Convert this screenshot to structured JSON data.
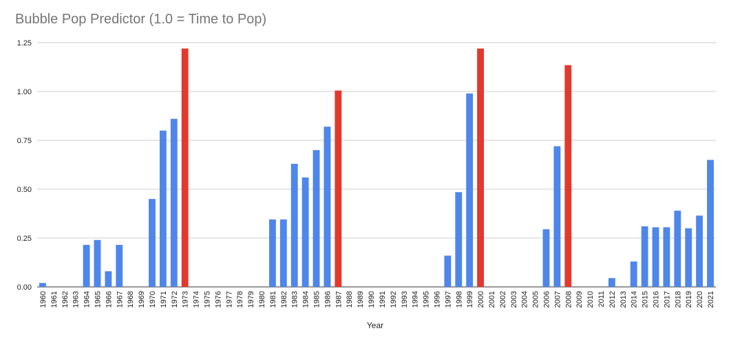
{
  "chart_data": {
    "type": "bar",
    "title": "Bubble Pop Predictor (1.0 = Time to Pop)",
    "xlabel": "Year",
    "ylabel": "",
    "ylim": [
      0,
      1.25
    ],
    "yticks": [
      "0.00",
      "0.25",
      "0.50",
      "0.75",
      "1.00",
      "1.25"
    ],
    "grid": true,
    "legend": "none",
    "colors": {
      "default": "#4e86ea",
      "highlight": "#e3392c"
    },
    "highlight_categories": [
      "1973",
      "1987",
      "2000",
      "2008"
    ],
    "categories": [
      "1960",
      "1961",
      "1962",
      "1963",
      "1964",
      "1965",
      "1966",
      "1967",
      "1968",
      "1969",
      "1970",
      "1971",
      "1972",
      "1973",
      "1974",
      "1975",
      "1976",
      "1977",
      "1978",
      "1979",
      "1980",
      "1981",
      "1982",
      "1983",
      "1984",
      "1985",
      "1986",
      "1987",
      "1988",
      "1989",
      "1990",
      "1991",
      "1992",
      "1993",
      "1994",
      "1995",
      "1996",
      "1997",
      "1998",
      "1999",
      "2000",
      "2001",
      "2002",
      "2003",
      "2004",
      "2005",
      "2006",
      "2007",
      "2008",
      "2009",
      "2010",
      "2011",
      "2012",
      "2013",
      "2014",
      "2015",
      "2016",
      "2017",
      "2018",
      "2019",
      "2020",
      "2021"
    ],
    "values": [
      0.02,
      0,
      0,
      0,
      0.215,
      0.24,
      0.08,
      0.215,
      0,
      0,
      0.45,
      0.8,
      0.86,
      1.22,
      0,
      0,
      0,
      0,
      0,
      0,
      0,
      0.345,
      0.345,
      0.63,
      0.56,
      0.7,
      0.82,
      1.005,
      0,
      0,
      0,
      0,
      0,
      0,
      0,
      0,
      0,
      0.16,
      0.485,
      0.99,
      1.22,
      0,
      0,
      0,
      0,
      0,
      0.295,
      0.72,
      1.135,
      0,
      0,
      0,
      0.045,
      0,
      0.13,
      0.31,
      0.305,
      0.305,
      0.39,
      0.3,
      0.365,
      0.65
    ]
  }
}
